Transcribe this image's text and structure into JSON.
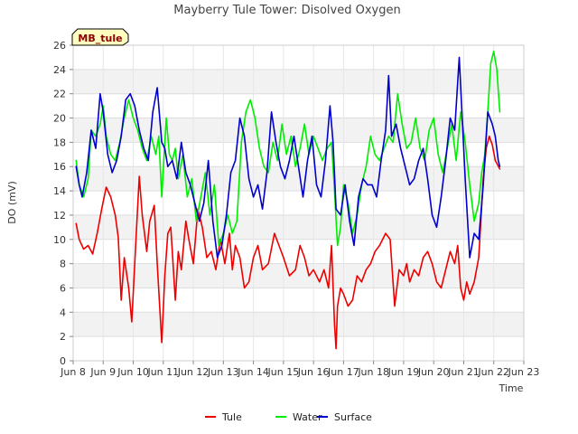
{
  "chart_data": {
    "type": "line",
    "title": "Mayberry Tule Tower: Disolved Oxygen",
    "xlabel": "Time",
    "ylabel": "DO (mV)",
    "badge": "MB_tule",
    "xlim": [
      8,
      23
    ],
    "ylim": [
      0,
      26
    ],
    "x_ticks": [
      8,
      9,
      10,
      11,
      12,
      13,
      14,
      15,
      16,
      17,
      18,
      19,
      20,
      21,
      22,
      23
    ],
    "x_tick_labels": [
      "Jun 8",
      "Jun 9",
      "Jun 10",
      "Jun 11",
      "Jun 12",
      "Jun 13",
      "Jun 14",
      "Jun 15",
      "Jun 16",
      "Jun 17",
      "Jun 18",
      "Jun 19",
      "Jun 20",
      "Jun 21",
      "Jun 22",
      "Jun 23"
    ],
    "y_ticks": [
      0,
      2,
      4,
      6,
      8,
      10,
      12,
      14,
      16,
      18,
      20,
      22,
      24,
      26
    ],
    "grid": true,
    "legend_position": "bottom",
    "series": [
      {
        "name": "Tule",
        "color": "#ee0000",
        "x": [
          8.1,
          8.2,
          8.35,
          8.5,
          8.65,
          8.8,
          8.95,
          9.1,
          9.25,
          9.4,
          9.5,
          9.6,
          9.7,
          9.85,
          9.95,
          10.1,
          10.2,
          10.3,
          10.45,
          10.55,
          10.7,
          10.8,
          10.95,
          11.05,
          11.15,
          11.25,
          11.4,
          11.5,
          11.6,
          11.75,
          11.85,
          12.0,
          12.15,
          12.3,
          12.45,
          12.6,
          12.75,
          12.9,
          13.05,
          13.2,
          13.3,
          13.4,
          13.55,
          13.7,
          13.85,
          14.0,
          14.15,
          14.3,
          14.5,
          14.7,
          14.85,
          15.0,
          15.2,
          15.4,
          15.55,
          15.7,
          15.85,
          16.0,
          16.2,
          16.35,
          16.5,
          16.6,
          16.7,
          16.75,
          16.8,
          16.9,
          17.0,
          17.15,
          17.3,
          17.45,
          17.6,
          17.75,
          17.9,
          18.05,
          18.2,
          18.4,
          18.55,
          18.7,
          18.85,
          19.0,
          19.1,
          19.2,
          19.35,
          19.5,
          19.65,
          19.8,
          19.95,
          20.1,
          20.25,
          20.4,
          20.55,
          20.7,
          20.8,
          20.9,
          21.0,
          21.1,
          21.2,
          21.35,
          21.5,
          21.65,
          21.75,
          21.85,
          21.95,
          22.05,
          22.2
        ],
        "y": [
          11.3,
          10.0,
          9.2,
          9.5,
          8.8,
          10.5,
          12.5,
          14.3,
          13.5,
          12.0,
          10.2,
          5.0,
          8.5,
          6.0,
          3.2,
          10.5,
          15.2,
          12.0,
          9.0,
          11.5,
          12.8,
          8.0,
          1.5,
          7.0,
          10.5,
          11.0,
          5.0,
          9.0,
          7.5,
          11.5,
          10.0,
          8.0,
          12.5,
          11.0,
          8.5,
          9.0,
          7.5,
          10.0,
          8.0,
          10.5,
          7.5,
          9.5,
          8.5,
          6.0,
          6.5,
          8.5,
          9.5,
          7.5,
          8.0,
          10.5,
          9.5,
          8.5,
          7.0,
          7.5,
          9.5,
          8.5,
          7.0,
          7.5,
          6.5,
          7.5,
          6.0,
          9.5,
          3.0,
          1.0,
          4.5,
          6.0,
          5.5,
          4.5,
          5.0,
          7.0,
          6.5,
          7.5,
          8.0,
          9.0,
          9.5,
          10.5,
          10.0,
          4.5,
          7.5,
          7.0,
          8.0,
          6.5,
          7.5,
          7.0,
          8.5,
          9.0,
          8.0,
          6.5,
          6.0,
          7.5,
          9.0,
          8.0,
          9.5,
          6.0,
          5.0,
          6.5,
          5.5,
          6.5,
          8.5,
          15.0,
          17.5,
          18.5,
          17.8,
          16.5,
          15.8
        ]
      },
      {
        "name": "Water",
        "color": "#00ee00",
        "x": [
          8.1,
          8.2,
          8.35,
          8.5,
          8.6,
          8.75,
          8.9,
          9.0,
          9.1,
          9.25,
          9.4,
          9.55,
          9.7,
          9.85,
          10.0,
          10.15,
          10.3,
          10.45,
          10.6,
          10.75,
          10.85,
          10.95,
          11.1,
          11.2,
          11.3,
          11.4,
          11.5,
          11.65,
          11.8,
          11.95,
          12.1,
          12.25,
          12.4,
          12.55,
          12.7,
          12.85,
          13.0,
          13.15,
          13.3,
          13.45,
          13.6,
          13.75,
          13.9,
          14.05,
          14.2,
          14.35,
          14.5,
          14.65,
          14.8,
          14.95,
          15.1,
          15.25,
          15.4,
          15.55,
          15.7,
          15.85,
          16.0,
          16.15,
          16.3,
          16.45,
          16.6,
          16.7,
          16.8,
          16.9,
          17.0,
          17.15,
          17.3,
          17.45,
          17.6,
          17.75,
          17.9,
          18.05,
          18.2,
          18.35,
          18.5,
          18.65,
          18.8,
          18.95,
          19.1,
          19.25,
          19.4,
          19.55,
          19.7,
          19.85,
          20.0,
          20.15,
          20.3,
          20.45,
          20.6,
          20.75,
          20.9,
          21.05,
          21.2,
          21.35,
          21.5,
          21.6,
          21.7,
          21.8,
          21.9,
          22.0,
          22.1,
          22.2
        ],
        "y": [
          16.5,
          14.5,
          13.5,
          15.0,
          19.0,
          18.5,
          19.5,
          21.0,
          18.5,
          17.0,
          16.5,
          18.0,
          20.0,
          21.5,
          20.0,
          19.0,
          17.5,
          16.5,
          18.5,
          17.0,
          18.5,
          13.5,
          20.0,
          17.0,
          16.5,
          17.5,
          15.0,
          17.0,
          13.5,
          15.0,
          11.5,
          13.5,
          15.5,
          12.0,
          14.5,
          9.5,
          10.5,
          12.0,
          10.5,
          11.5,
          18.0,
          20.5,
          21.5,
          20.0,
          17.5,
          16.0,
          15.5,
          18.0,
          16.5,
          19.5,
          17.0,
          18.5,
          16.0,
          17.5,
          19.5,
          17.0,
          18.5,
          17.5,
          16.5,
          17.5,
          18.0,
          14.0,
          9.5,
          11.0,
          14.5,
          13.0,
          10.5,
          12.0,
          14.5,
          16.0,
          18.5,
          17.0,
          16.5,
          17.5,
          18.5,
          18.0,
          22.0,
          19.5,
          17.5,
          18.0,
          20.0,
          17.5,
          16.5,
          19.0,
          20.0,
          17.0,
          15.5,
          17.5,
          19.5,
          16.5,
          20.5,
          18.0,
          14.5,
          11.5,
          13.0,
          15.5,
          17.0,
          20.5,
          24.5,
          25.5,
          24.0,
          20.5
        ]
      },
      {
        "name": "Surface",
        "color": "#0000cc",
        "x": [
          8.1,
          8.2,
          8.3,
          8.45,
          8.6,
          8.75,
          8.9,
          9.0,
          9.15,
          9.3,
          9.45,
          9.6,
          9.75,
          9.9,
          10.05,
          10.2,
          10.35,
          10.5,
          10.65,
          10.8,
          10.95,
          11.05,
          11.15,
          11.3,
          11.45,
          11.6,
          11.75,
          11.9,
          12.05,
          12.2,
          12.35,
          12.5,
          12.65,
          12.8,
          12.95,
          13.1,
          13.25,
          13.4,
          13.55,
          13.7,
          13.85,
          14.0,
          14.15,
          14.3,
          14.45,
          14.6,
          14.75,
          14.9,
          15.05,
          15.2,
          15.35,
          15.5,
          15.65,
          15.8,
          15.95,
          16.1,
          16.25,
          16.4,
          16.55,
          16.65,
          16.75,
          16.9,
          17.05,
          17.2,
          17.35,
          17.5,
          17.65,
          17.8,
          17.95,
          18.1,
          18.25,
          18.4,
          18.5,
          18.6,
          18.75,
          18.9,
          19.05,
          19.2,
          19.35,
          19.5,
          19.65,
          19.8,
          19.95,
          20.1,
          20.25,
          20.4,
          20.55,
          20.7,
          20.85,
          20.95,
          21.05,
          21.2,
          21.35,
          21.5,
          21.65,
          21.8,
          21.95,
          22.05,
          22.15,
          22.2
        ],
        "y": [
          16.0,
          14.5,
          13.5,
          15.5,
          19.0,
          17.5,
          22.0,
          20.5,
          17.0,
          15.5,
          16.5,
          18.5,
          21.5,
          22.0,
          21.0,
          19.0,
          17.5,
          16.5,
          20.5,
          22.5,
          18.0,
          17.5,
          16.0,
          16.5,
          15.0,
          18.0,
          15.5,
          14.5,
          13.0,
          11.5,
          13.0,
          16.5,
          11.5,
          8.5,
          9.5,
          12.0,
          15.5,
          16.5,
          20.0,
          18.5,
          15.0,
          13.5,
          14.5,
          12.5,
          15.5,
          20.5,
          18.0,
          16.0,
          15.0,
          16.5,
          18.5,
          16.0,
          13.5,
          16.5,
          18.5,
          14.5,
          13.5,
          16.5,
          21.0,
          18.0,
          12.5,
          12.0,
          14.5,
          11.5,
          9.5,
          13.5,
          15.0,
          14.5,
          14.5,
          13.5,
          16.5,
          19.0,
          23.5,
          18.5,
          19.5,
          17.5,
          16.0,
          14.5,
          15.0,
          16.5,
          17.5,
          15.0,
          12.0,
          11.0,
          13.5,
          16.5,
          20.0,
          19.0,
          25.0,
          20.0,
          15.0,
          8.5,
          10.5,
          10.0,
          14.5,
          20.5,
          19.5,
          18.5,
          16.5,
          16.0
        ]
      }
    ]
  }
}
